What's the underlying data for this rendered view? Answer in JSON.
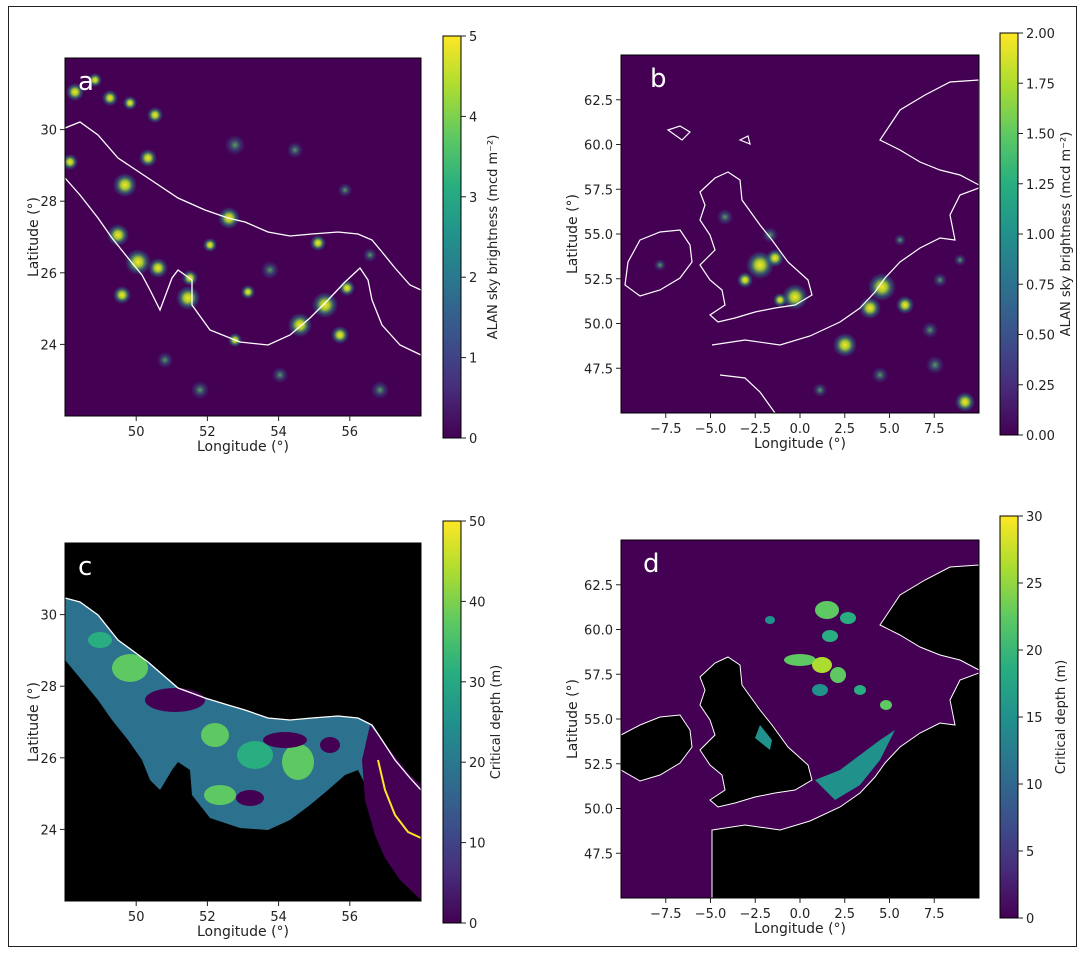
{
  "colors": {
    "viridis_stops": [
      "#440154",
      "#472d7b",
      "#3b528b",
      "#2c728e",
      "#21918c",
      "#28ae80",
      "#5ec962",
      "#addc30",
      "#fde725"
    ],
    "land_dark": "#000000",
    "sea_dark": "#440154",
    "coast": "#ffffff"
  },
  "chart_data": [
    {
      "panel": "a",
      "type": "heatmap",
      "title": "",
      "xlabel": "Longitude (°)",
      "ylabel": "Latitude (°)",
      "xlim": [
        48.0,
        58.0
      ],
      "ylim": [
        22.0,
        32.0
      ],
      "xticks": [
        50,
        52,
        54,
        56
      ],
      "yticks": [
        24,
        26,
        28,
        30
      ],
      "colorbar": {
        "label": "ALAN sky brightness (mcd m⁻²)",
        "min": 0,
        "max": 5,
        "ticks": [
          0,
          1,
          2,
          3,
          4,
          5
        ],
        "tick_labels": [
          "0",
          "1",
          "2",
          "3",
          "4",
          "5"
        ]
      }
    },
    {
      "panel": "b",
      "type": "heatmap",
      "title": "",
      "xlabel": "Longitude (°)",
      "ylabel": "Latitude (°)",
      "xlim": [
        -10.0,
        10.0
      ],
      "ylim": [
        45.0,
        65.0
      ],
      "xticks": [
        -7.5,
        -5.0,
        -2.5,
        0.0,
        2.5,
        5.0,
        7.5
      ],
      "xtick_labels": [
        "−7.5",
        "−5.0",
        "−2.5",
        "0.0",
        "2.5",
        "5.0",
        "7.5"
      ],
      "yticks": [
        47.5,
        50.0,
        52.5,
        55.0,
        57.5,
        60.0,
        62.5
      ],
      "ytick_labels": [
        "47.5",
        "50.0",
        "52.5",
        "55.0",
        "57.5",
        "60.0",
        "62.5"
      ],
      "colorbar": {
        "label": "ALAN sky brightness (mcd m⁻²)",
        "min": 0,
        "max": 2,
        "ticks": [
          0,
          0.25,
          0.5,
          0.75,
          1.0,
          1.25,
          1.5,
          1.75,
          2.0
        ],
        "tick_labels": [
          "0.00",
          "0.25",
          "0.50",
          "0.75",
          "1.00",
          "1.25",
          "1.50",
          "1.75",
          "2.00"
        ]
      }
    },
    {
      "panel": "c",
      "type": "heatmap",
      "title": "",
      "xlabel": "Longitude (°)",
      "ylabel": "Latitude (°)",
      "xlim": [
        48.0,
        58.0
      ],
      "ylim": [
        22.0,
        32.0
      ],
      "xticks": [
        50,
        52,
        54,
        56
      ],
      "yticks": [
        24,
        26,
        28,
        30
      ],
      "colorbar": {
        "label": "Critical depth (m)",
        "min": 0,
        "max": 50,
        "ticks": [
          0,
          10,
          20,
          30,
          40,
          50
        ],
        "tick_labels": [
          "0",
          "10",
          "20",
          "30",
          "40",
          "50"
        ]
      }
    },
    {
      "panel": "d",
      "type": "heatmap",
      "title": "",
      "xlabel": "Longitude (°)",
      "ylabel": "Latitude (°)",
      "xlim": [
        -10.0,
        10.0
      ],
      "ylim": [
        45.0,
        65.0
      ],
      "xticks": [
        -7.5,
        -5.0,
        -2.5,
        0.0,
        2.5,
        5.0,
        7.5
      ],
      "xtick_labels": [
        "−7.5",
        "−5.0",
        "−2.5",
        "0.0",
        "2.5",
        "5.0",
        "7.5"
      ],
      "yticks": [
        47.5,
        50.0,
        52.5,
        55.0,
        57.5,
        60.0,
        62.5
      ],
      "ytick_labels": [
        "47.5",
        "50.0",
        "52.5",
        "55.0",
        "57.5",
        "60.0",
        "62.5"
      ],
      "colorbar": {
        "label": "Critical depth (m)",
        "min": 0,
        "max": 30,
        "ticks": [
          0,
          5,
          10,
          15,
          20,
          25,
          30
        ],
        "tick_labels": [
          "0",
          "5",
          "10",
          "15",
          "20",
          "25",
          "30"
        ]
      }
    }
  ]
}
